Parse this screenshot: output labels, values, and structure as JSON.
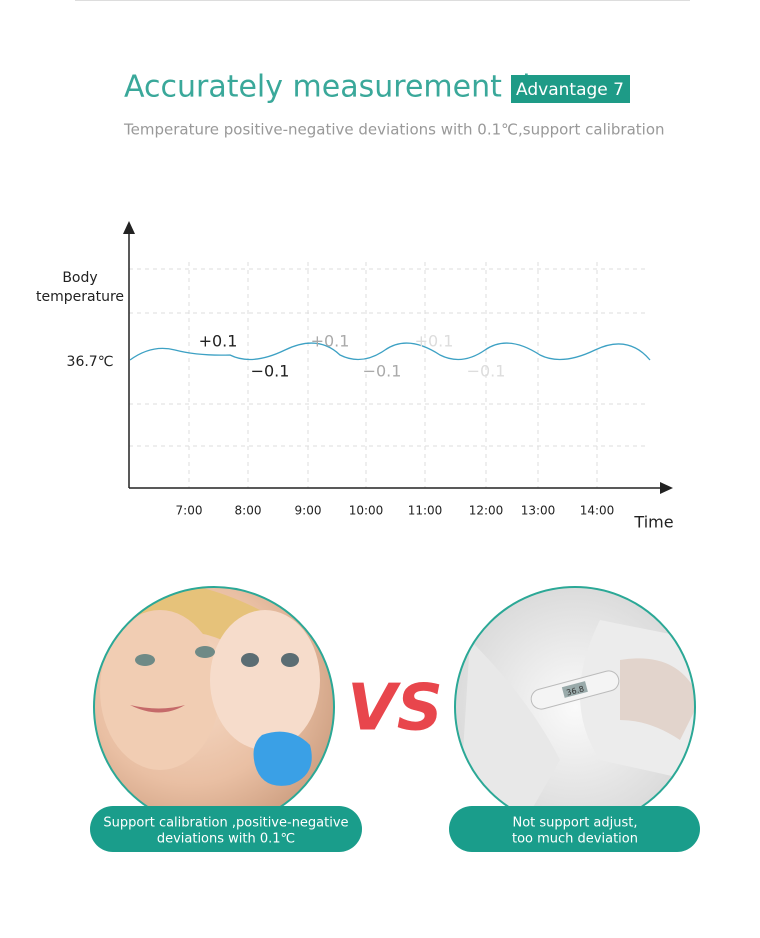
{
  "header": {
    "title": "Accurately measurement data",
    "badge": "Advantage 7",
    "subtitle": "Temperature positive-negative deviations with 0.1℃,support calibration"
  },
  "diagram": {
    "y_label": [
      "Body",
      "temperature"
    ],
    "baseline_label": "36.7℃",
    "x_label": "Time",
    "x_ticks": [
      "7:00",
      "8:00",
      "9:00",
      "10:00",
      "11:00",
      "12:00",
      "13:00",
      "14:00"
    ],
    "deviations": [
      "+0.1",
      "−0.1",
      "+0.1",
      "−0.1",
      "+0.1",
      "−0.1"
    ]
  },
  "comparison": {
    "vs": "VS",
    "left": [
      "Support calibration ,positive-negative",
      "deviations with 0.1℃"
    ],
    "right": [
      "Not support adjust,",
      "too much deviation"
    ],
    "thermometer_display": "36.8"
  }
}
